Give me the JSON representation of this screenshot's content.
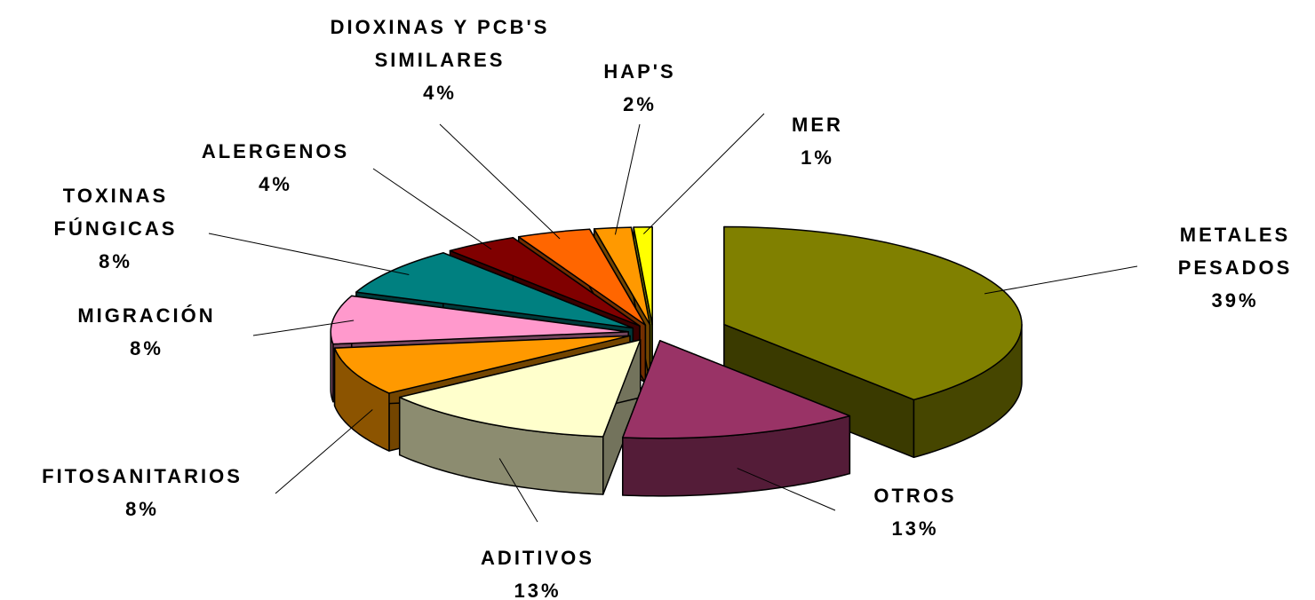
{
  "chart_data": {
    "type": "pie3d",
    "categories": [
      "METALES PESADOS",
      "OTROS",
      "ADITIVOS",
      "FITOSANITARIOS",
      "MIGRACIÓN",
      "TOXINAS FÚNGICAS",
      "ALERGENOS",
      "DIOXINAS Y PCB'S SIMILARES",
      "HAP'S",
      "MER"
    ],
    "values": [
      39,
      13,
      13,
      8,
      8,
      8,
      4,
      4,
      2,
      1
    ],
    "value_labels": [
      "39%",
      "13%",
      "13%",
      "8%",
      "8%",
      "8%",
      "4%",
      "4%",
      "2%",
      "1%"
    ],
    "colors": [
      "#808000",
      "#993366",
      "#ffffcc",
      "#ff9900",
      "#ff99cc",
      "#008080",
      "#800000",
      "#ff6600",
      "#ff9900",
      "#ffff00"
    ]
  }
}
